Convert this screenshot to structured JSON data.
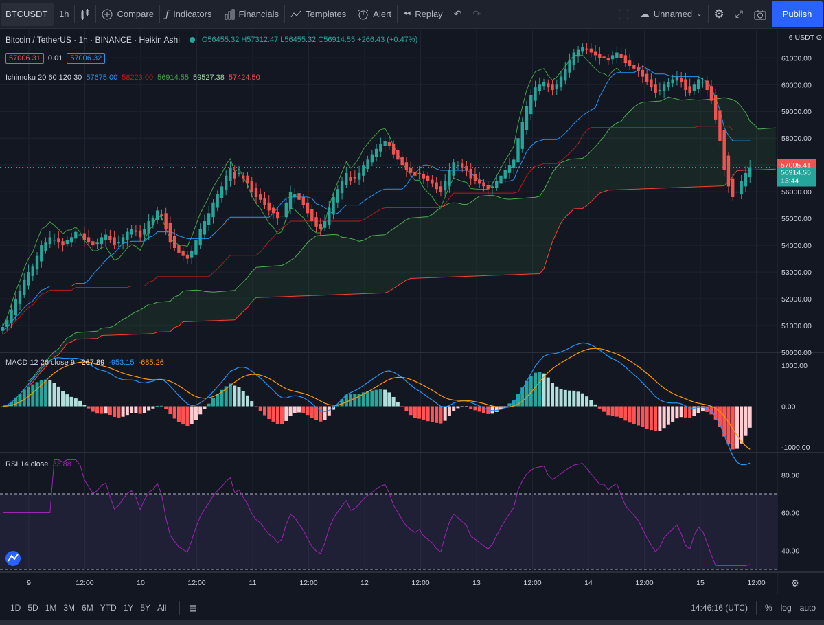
{
  "toolbar": {
    "symbol": "BTCUSDT",
    "interval": "1h",
    "compare": "Compare",
    "indicators": "Indicators",
    "financials": "Financials",
    "templates": "Templates",
    "alert": "Alert",
    "replay": "Replay",
    "layout_name": "Unnamed",
    "publish": "Publish"
  },
  "legend": {
    "title": "Bitcoin / TetherUS · 1h · BINANCE · Heikin Ashi",
    "ohlc": "O56455.32 H57312.47 L56455.32 C56914.55 +266.43 (+0.47%)",
    "bid": "57006.31",
    "spread": "0.01",
    "ask": "57006.32",
    "ichimoku_label": "Ichimoku 20 60 120 30",
    "ichimoku_values": [
      "57675.00",
      "58223.00",
      "56914.55",
      "59527.38",
      "57424.50"
    ],
    "macd_label": "MACD 12 26 close 9",
    "macd_values": [
      "-267.89",
      "-953.15",
      "-685.26"
    ],
    "rsi_label": "RSI 14 close",
    "rsi_value": "33.88"
  },
  "price_axis": {
    "unit": "6 USDT ʘ",
    "ticks": [
      "61000.00",
      "60000.00",
      "59000.00",
      "58000.00",
      "57000.00",
      "56000.00",
      "55000.00",
      "54000.00",
      "53000.00",
      "52000.00",
      "51000.00",
      "50000.00"
    ],
    "label_red": "57005.41",
    "label_last": "56914.55",
    "label_countdown": "13:44"
  },
  "macd_axis": {
    "ticks": [
      "1000.00",
      "0.00",
      "-1000.00"
    ]
  },
  "rsi_axis": {
    "ticks": [
      "80.00",
      "60.00",
      "40.00"
    ]
  },
  "time_axis": [
    "9",
    "12:00",
    "10",
    "12:00",
    "11",
    "12:00",
    "12",
    "12:00",
    "13",
    "12:00",
    "14",
    "12:00",
    "15",
    "12:00"
  ],
  "bottom": {
    "ranges": [
      "1D",
      "5D",
      "1M",
      "3M",
      "6M",
      "YTD",
      "1Y",
      "5Y",
      "All"
    ],
    "clock": "14:46:16 (UTC)",
    "percent": "%",
    "log": "log",
    "auto": "auto"
  },
  "colors": {
    "bull": "#26a69a",
    "bear": "#ef5350",
    "tenkan": "#2196f3",
    "kijun": "#b71c1c",
    "lagging": "#43a047",
    "spanA": "#4caf50",
    "spanB": "#f44336",
    "rsi": "#9c27b0"
  },
  "chart_data": {
    "type": "candlestick",
    "series": [
      {
        "name": "Heikin Ashi",
        "close": [
          50950,
          51200,
          51600,
          52000,
          52300,
          52700,
          53000,
          53200,
          53600,
          54000,
          54100,
          54300,
          54200,
          54100,
          54000,
          54200,
          54300,
          54500,
          54400,
          54200,
          54100,
          54000,
          54100,
          54300,
          54400,
          54200,
          54000,
          54100,
          54300,
          54500,
          54600,
          54500,
          54300,
          54600,
          54900,
          55000,
          55300,
          55100,
          54600,
          54100,
          53900,
          53700,
          53600,
          53500,
          53800,
          54200,
          54600,
          54900,
          55200,
          55600,
          55900,
          56200,
          56600,
          56900,
          56500,
          56700,
          56500,
          56300,
          56000,
          55800,
          55700,
          55500,
          55300,
          55200,
          55000,
          55100,
          55600,
          56000,
          55900,
          55700,
          55500,
          55200,
          54900,
          54700,
          54600,
          54900,
          55400,
          55800,
          56100,
          56400,
          56700,
          56400,
          56500,
          56700,
          57000,
          57200,
          57400,
          57600,
          57800,
          57900,
          57700,
          57400,
          57200,
          57000,
          56800,
          56700,
          56600,
          56700,
          56500,
          56400,
          56300,
          56100,
          56000,
          56400,
          56800,
          57100,
          57000,
          56900,
          56800,
          56500,
          56400,
          56300,
          56200,
          56100,
          56200,
          56400,
          56600,
          56800,
          57000,
          57200,
          58000,
          58600,
          59200,
          59600,
          59900,
          60000,
          60100,
          59900,
          59800,
          60000,
          60300,
          60600,
          60900,
          61200,
          61300,
          61400,
          61300,
          61200,
          61100,
          61000,
          61000,
          60900,
          61100,
          61200,
          61000,
          60800,
          60700,
          60600,
          60500,
          60300,
          60100,
          59900,
          59700,
          59800,
          60000,
          60100,
          60200,
          60300,
          60100,
          59800,
          59700,
          60000,
          60200,
          60100,
          59800,
          59400,
          58700,
          57900,
          56800,
          56200,
          55800,
          56000,
          56400,
          56700,
          56914.55
        ]
      }
    ],
    "indicators": [
      "Ichimoku 20 60 120 30",
      "MACD 12 26 close 9",
      "RSI 14 close"
    ],
    "y_range": [
      50000,
      61700
    ],
    "macd_range": [
      -1000,
      1000
    ],
    "rsi_range": [
      30,
      90
    ],
    "rsi_bands": [
      70,
      30
    ]
  }
}
